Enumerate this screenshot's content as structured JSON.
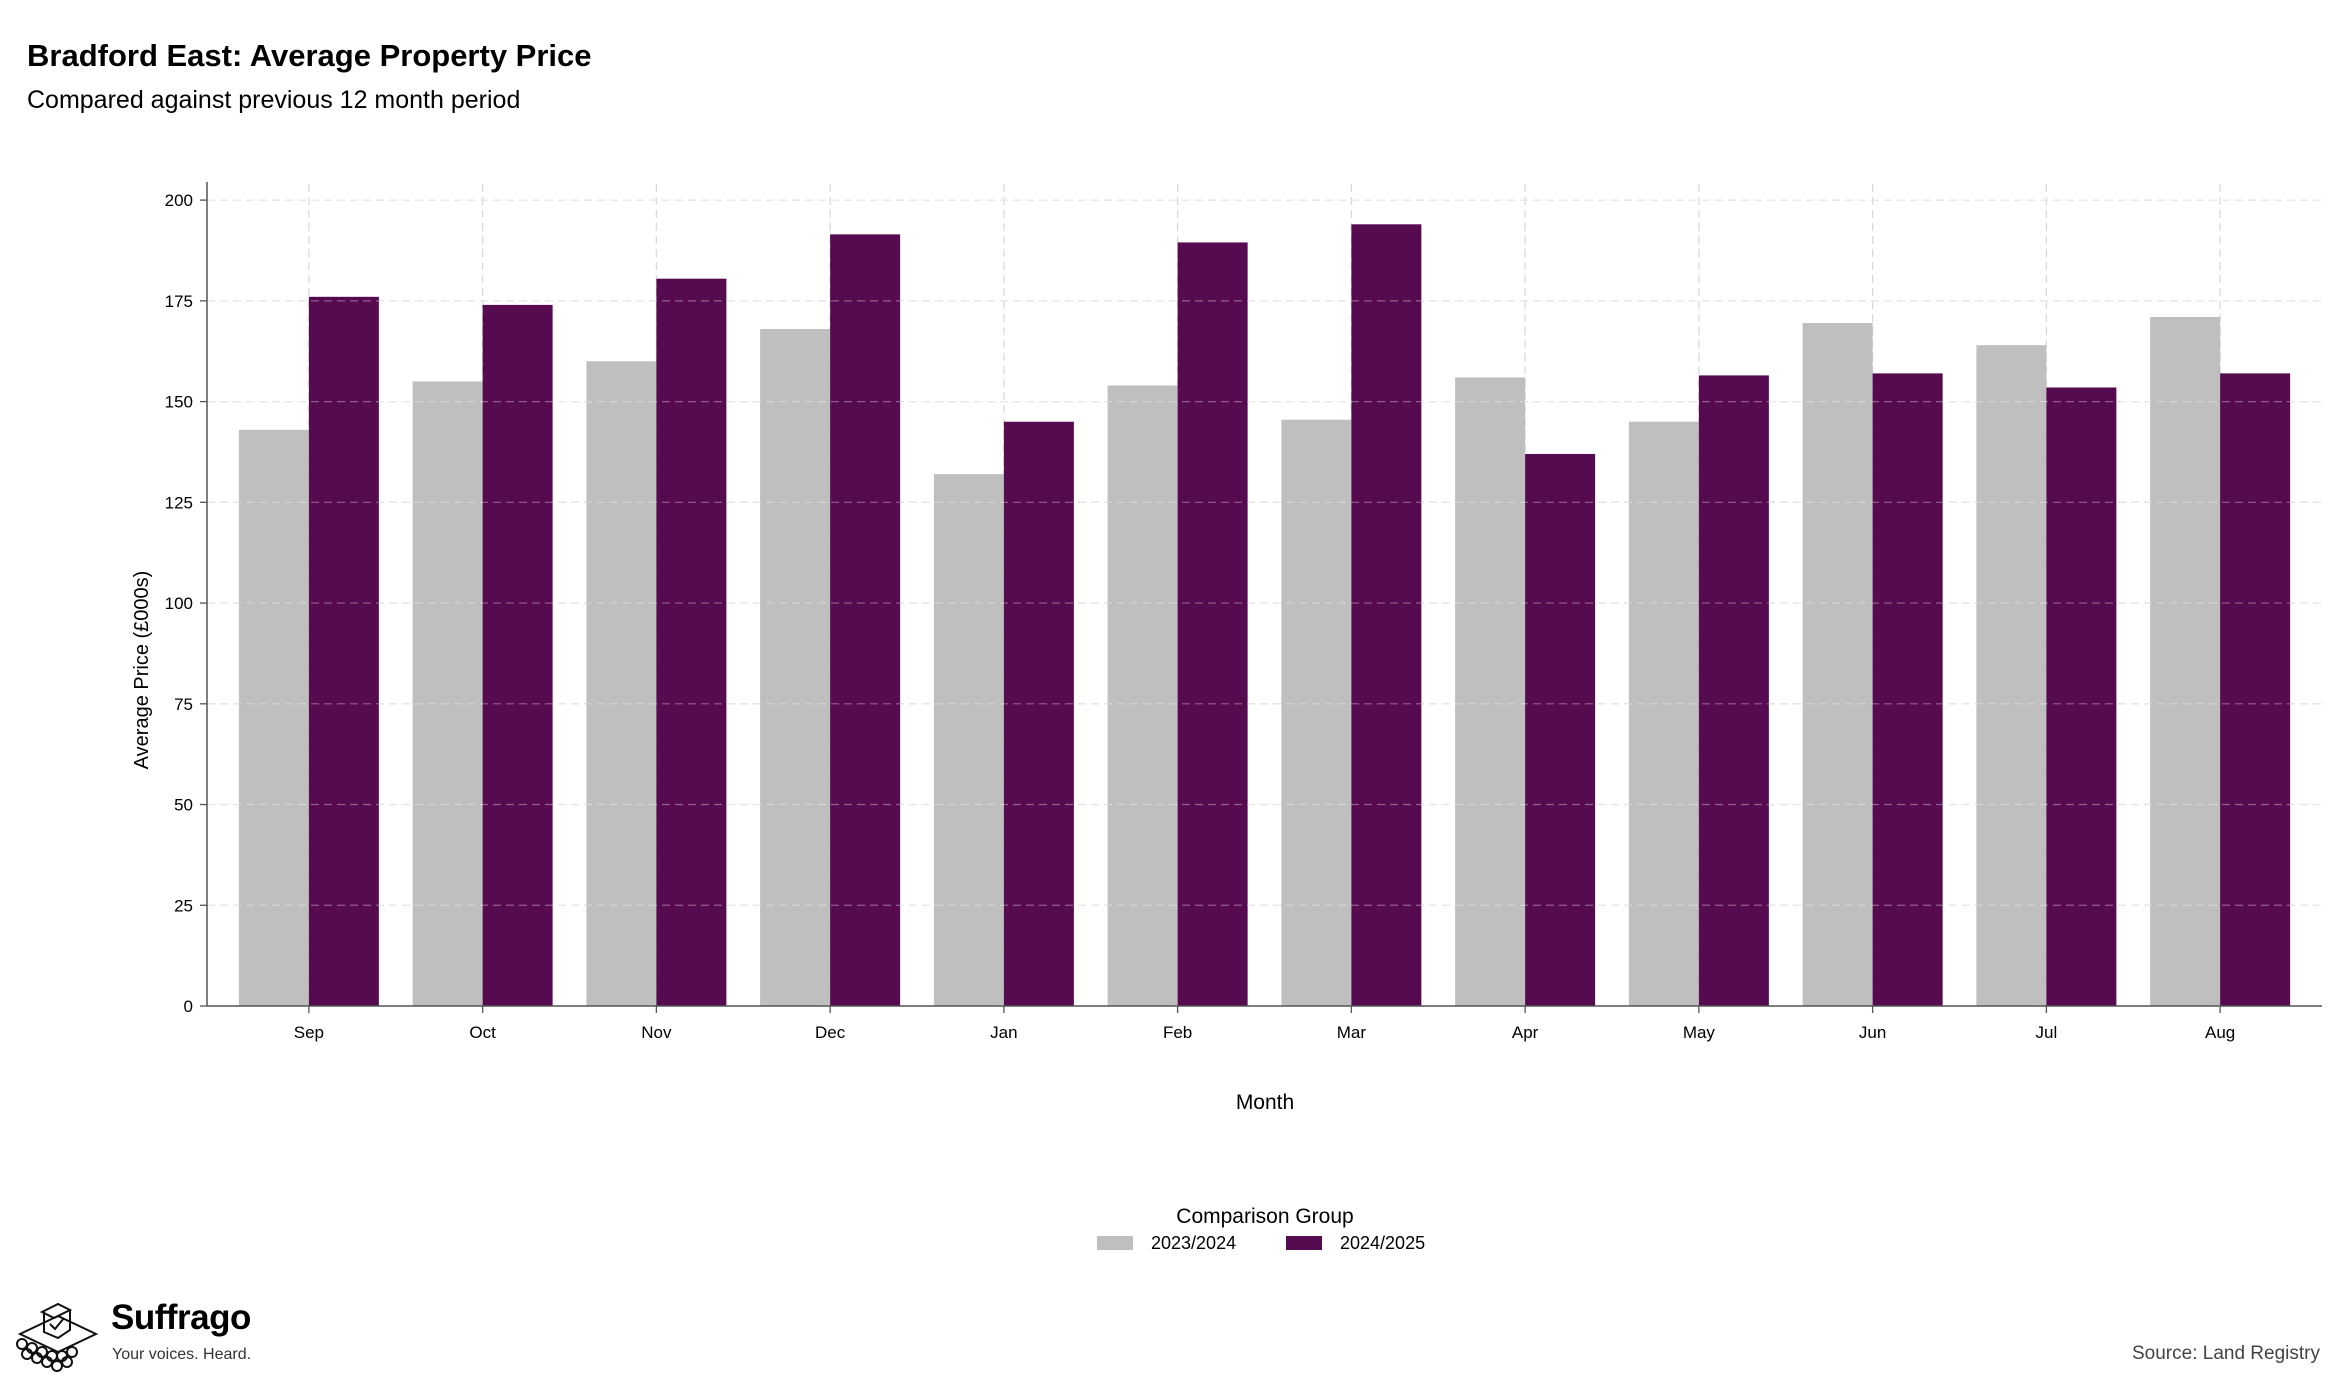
{
  "chart_data": {
    "type": "bar",
    "title": "Bradford East: Average Property Price",
    "subtitle": "Compared against previous 12 month period",
    "xlabel": "Month",
    "ylabel": "Average Price (£000s)",
    "ylim": [
      0,
      204
    ],
    "yticks": [
      0,
      25,
      50,
      75,
      100,
      125,
      150,
      175,
      200
    ],
    "grid": true,
    "legend": {
      "title": "Comparison Group",
      "placement": "bottom-center"
    },
    "categories": [
      "Sep",
      "Oct",
      "Nov",
      "Dec",
      "Jan",
      "Feb",
      "Mar",
      "Apr",
      "May",
      "Jun",
      "Jul",
      "Aug"
    ],
    "series": [
      {
        "name": "2023/2024",
        "color": "#bfbfbf",
        "values": [
          143,
          155,
          160,
          168,
          132,
          154,
          145.5,
          156,
          145,
          169.5,
          164,
          171
        ]
      },
      {
        "name": "2024/2025",
        "color": "#560a50",
        "values": [
          176,
          174,
          180.5,
          191.5,
          145,
          189.5,
          194,
          137,
          156.5,
          157,
          153.5,
          157
        ]
      }
    ]
  },
  "branding": {
    "name": "Suffrago",
    "tagline": "Your voices. Heard.",
    "logo_icon": "ballot-box-icon"
  },
  "source": "Source: Land Registry"
}
